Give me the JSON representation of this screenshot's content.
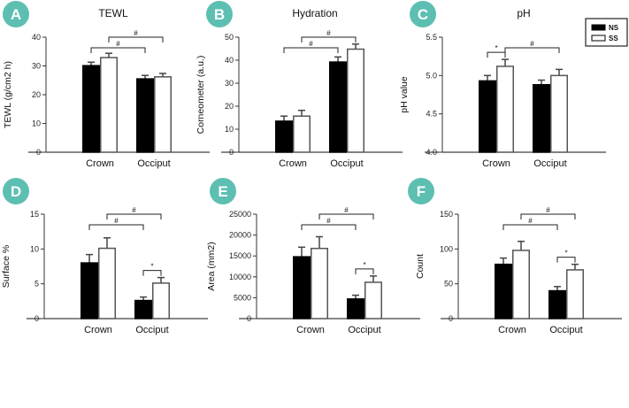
{
  "legend": {
    "series": [
      "NS",
      "SS"
    ],
    "position": "top-right"
  },
  "colors": {
    "badge": "#5dbfb1",
    "NS": "#000000",
    "SS": "#ffffff"
  },
  "chart_data": [
    {
      "type": "bar",
      "panel": "A",
      "title": "TEWL",
      "ylabel": "TEWL (g/cm2 h)",
      "categories": [
        "Crown",
        "Occiput"
      ],
      "ylim": [
        0,
        40
      ],
      "yticks": [
        "0",
        "10",
        "20",
        "30",
        "40"
      ],
      "series": [
        {
          "name": "NS",
          "values": [
            30.1,
            25.5
          ],
          "errors": [
            1.2,
            1.2
          ]
        },
        {
          "name": "SS",
          "values": [
            32.9,
            26.2
          ],
          "errors": [
            1.5,
            1.2
          ]
        }
      ],
      "significance": [
        {
          "from": [
            0,
            0
          ],
          "to": [
            1,
            0
          ],
          "label": "#"
        },
        {
          "from": [
            0,
            1
          ],
          "to": [
            1,
            1
          ],
          "label": "#"
        }
      ]
    },
    {
      "type": "bar",
      "panel": "B",
      "title": "Hydration",
      "ylabel": "Corneometer (a.u.)",
      "categories": [
        "Crown",
        "Occiput"
      ],
      "ylim": [
        0,
        50
      ],
      "yticks": [
        "0",
        "10",
        "20",
        "30",
        "40",
        "50"
      ],
      "series": [
        {
          "name": "NS",
          "values": [
            13.5,
            39.2
          ],
          "errors": [
            2.2,
            2.2
          ]
        },
        {
          "name": "SS",
          "values": [
            15.7,
            44.8
          ],
          "errors": [
            2.5,
            2.2
          ]
        }
      ],
      "significance": [
        {
          "from": [
            0,
            0
          ],
          "to": [
            1,
            0
          ],
          "label": "#"
        },
        {
          "from": [
            0,
            1
          ],
          "to": [
            1,
            1
          ],
          "label": "#"
        }
      ]
    },
    {
      "type": "bar",
      "panel": "C",
      "title": "pH",
      "ylabel": "pH value",
      "categories": [
        "Crown",
        "Occiput"
      ],
      "ylim": [
        4.0,
        5.5
      ],
      "yticks": [
        "4.0",
        "4.5",
        "5.0",
        "5.5"
      ],
      "series": [
        {
          "name": "NS",
          "values": [
            4.93,
            4.88
          ],
          "errors": [
            0.07,
            0.06
          ]
        },
        {
          "name": "SS",
          "values": [
            5.12,
            5.0
          ],
          "errors": [
            0.09,
            0.08
          ]
        }
      ],
      "significance": [
        {
          "from": [
            0,
            0
          ],
          "to": [
            0,
            1
          ],
          "label": "*"
        },
        {
          "from": [
            0,
            1
          ],
          "to": [
            1,
            1
          ],
          "label": "#"
        }
      ]
    },
    {
      "type": "bar",
      "panel": "D",
      "title": "",
      "ylabel": "Surface %",
      "categories": [
        "Crown",
        "Occiput"
      ],
      "ylim": [
        0,
        15
      ],
      "yticks": [
        "0",
        "5",
        "10",
        "15"
      ],
      "series": [
        {
          "name": "NS",
          "values": [
            8.0,
            2.6
          ],
          "errors": [
            1.2,
            0.5
          ]
        },
        {
          "name": "SS",
          "values": [
            10.1,
            5.1
          ],
          "errors": [
            1.5,
            0.8
          ]
        }
      ],
      "significance": [
        {
          "from": [
            1,
            0
          ],
          "to": [
            1,
            1
          ],
          "label": "*"
        },
        {
          "from": [
            0,
            0
          ],
          "to": [
            1,
            0
          ],
          "label": "#"
        },
        {
          "from": [
            0,
            1
          ],
          "to": [
            1,
            1
          ],
          "label": "#"
        }
      ]
    },
    {
      "type": "bar",
      "panel": "E",
      "title": "",
      "ylabel": "Area (mm2)",
      "categories": [
        "Crown",
        "Occiput"
      ],
      "ylim": [
        0,
        25000
      ],
      "yticks": [
        "0",
        "5000",
        "10000",
        "15000",
        "20000",
        "25000"
      ],
      "series": [
        {
          "name": "NS",
          "values": [
            14800,
            4700
          ],
          "errors": [
            2300,
            900
          ]
        },
        {
          "name": "SS",
          "values": [
            16800,
            8700
          ],
          "errors": [
            2800,
            1500
          ]
        }
      ],
      "significance": [
        {
          "from": [
            1,
            0
          ],
          "to": [
            1,
            1
          ],
          "label": "*"
        },
        {
          "from": [
            0,
            0
          ],
          "to": [
            1,
            0
          ],
          "label": "#"
        },
        {
          "from": [
            0,
            1
          ],
          "to": [
            1,
            1
          ],
          "label": "#"
        }
      ]
    },
    {
      "type": "bar",
      "panel": "F",
      "title": "",
      "ylabel": "Count",
      "categories": [
        "Crown",
        "Occiput"
      ],
      "ylim": [
        0,
        150
      ],
      "yticks": [
        "0",
        "50",
        "100",
        "150"
      ],
      "series": [
        {
          "name": "NS",
          "values": [
            78,
            40
          ],
          "errors": [
            9,
            6
          ]
        },
        {
          "name": "SS",
          "values": [
            98,
            70
          ],
          "errors": [
            13,
            8
          ]
        }
      ],
      "significance": [
        {
          "from": [
            1,
            0
          ],
          "to": [
            1,
            1
          ],
          "label": "*"
        },
        {
          "from": [
            0,
            0
          ],
          "to": [
            1,
            0
          ],
          "label": "#"
        },
        {
          "from": [
            0,
            1
          ],
          "to": [
            1,
            1
          ],
          "label": "#"
        }
      ]
    }
  ]
}
